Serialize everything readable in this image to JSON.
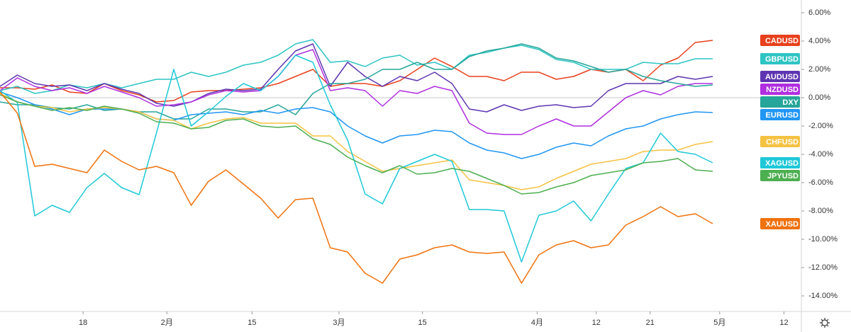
{
  "chart_data": {
    "type": "line",
    "xlim": [
      0,
      46.1
    ],
    "xticks": [
      {
        "value": 4.78,
        "label": "18"
      },
      {
        "value": 9.6,
        "label": "2月"
      },
      {
        "value": 14.5,
        "label": "15"
      },
      {
        "value": 19.5,
        "label": "3月"
      },
      {
        "value": 24.3,
        "label": "15"
      },
      {
        "value": 30.9,
        "label": "4月"
      },
      {
        "value": 34.3,
        "label": "12"
      },
      {
        "value": 37.4,
        "label": "21"
      },
      {
        "value": 41.4,
        "label": "5月"
      },
      {
        "value": 45.1,
        "label": "12"
      }
    ],
    "ylim": [
      -15.1,
      6.9
    ],
    "yticks": [
      {
        "value": 6,
        "label": "6.00%"
      },
      {
        "value": 4,
        "label": "4.00%"
      },
      {
        "value": 2,
        "label": "2.00%"
      },
      {
        "value": 0,
        "label": "0.00%"
      },
      {
        "value": -2,
        "label": "-2.00%"
      },
      {
        "value": -4,
        "label": "-4.00%"
      },
      {
        "value": -6,
        "label": "-6.00%"
      },
      {
        "value": -8,
        "label": "-8.00%"
      },
      {
        "value": -10,
        "label": "-10.00%"
      },
      {
        "value": -12,
        "label": "-12.00%"
      },
      {
        "value": -14,
        "label": "-14.00%"
      }
    ],
    "series": [
      {
        "name": "CADUSD",
        "color": "#e8401c",
        "values": [
          0.7,
          0.7,
          0.6,
          0.9,
          0.4,
          0.3,
          1.0,
          0.5,
          0.2,
          -0.3,
          -0.2,
          0.4,
          0.5,
          0.5,
          0.6,
          0.7,
          1.0,
          1.5,
          2.0,
          0.8,
          1.0,
          1.0,
          0.8,
          1.2,
          2.0,
          2.8,
          2.2,
          1.5,
          1.5,
          1.2,
          1.8,
          1.8,
          1.3,
          1.5,
          2.0,
          1.8,
          2.0,
          1.2,
          2.3,
          2.8,
          3.9,
          4.05
        ]
      },
      {
        "name": "GBPUSD",
        "color": "#2ec4c4",
        "values": [
          0.5,
          0.8,
          0.3,
          0.5,
          0.9,
          0.7,
          1.0,
          0.7,
          1.0,
          1.3,
          1.3,
          1.8,
          1.5,
          1.8,
          2.3,
          2.5,
          3.0,
          3.8,
          4.1,
          2.5,
          2.6,
          2.2,
          2.8,
          3.0,
          2.3,
          2.5,
          2.0,
          3.0,
          3.2,
          3.5,
          3.7,
          3.4,
          2.7,
          2.5,
          2.0,
          2.0,
          2.0,
          2.5,
          2.4,
          2.4,
          2.75,
          2.75
        ]
      },
      {
        "name": "AUDUSD",
        "color": "#5e35b1",
        "values": [
          0.8,
          1.6,
          1.0,
          0.8,
          0.9,
          0.5,
          1.0,
          0.6,
          0.3,
          -0.4,
          -0.6,
          -0.3,
          0.3,
          0.6,
          0.5,
          0.6,
          2.0,
          3.3,
          3.8,
          0.8,
          2.5,
          1.5,
          0.8,
          1.5,
          1.2,
          1.8,
          1.0,
          -0.8,
          -1.0,
          -0.5,
          -0.9,
          -0.6,
          -0.5,
          -0.7,
          -0.6,
          0.5,
          1.0,
          1.0,
          1.0,
          1.5,
          1.3,
          1.5
        ]
      },
      {
        "name": "NZDUSD",
        "color": "#b02ee0",
        "values": [
          0.5,
          1.4,
          0.8,
          0.5,
          0.7,
          0.3,
          0.8,
          0.4,
          0.0,
          -0.6,
          -0.5,
          -0.3,
          0.2,
          0.5,
          0.4,
          0.5,
          1.5,
          3.0,
          3.4,
          0.5,
          0.7,
          0.5,
          -0.6,
          0.5,
          0.3,
          0.8,
          0.5,
          -1.8,
          -2.5,
          -2.6,
          -2.6,
          -2.0,
          -1.5,
          -2.0,
          -2.0,
          -1.0,
          0.0,
          0.5,
          0.2,
          0.8,
          1.0,
          1.0
        ]
      },
      {
        "name": "DXY",
        "color": "#26a69a",
        "values": [
          -0.3,
          -0.5,
          -0.5,
          -0.7,
          -0.8,
          -0.5,
          -0.9,
          -0.8,
          -1.0,
          -1.0,
          -1.5,
          -1.5,
          -0.8,
          -0.8,
          -1.0,
          -1.0,
          -0.5,
          -1.2,
          0.3,
          1.0,
          1.0,
          1.3,
          2.0,
          2.0,
          2.5,
          2.0,
          2.0,
          2.9,
          3.3,
          3.5,
          3.8,
          3.5,
          2.8,
          2.6,
          2.2,
          1.8,
          2.0,
          1.5,
          1.2,
          1.0,
          0.8,
          0.9
        ]
      },
      {
        "name": "EURUSD",
        "color": "#2196f3",
        "values": [
          0.4,
          0.0,
          -0.5,
          -0.8,
          -1.2,
          -0.8,
          -0.8,
          -0.8,
          -1.0,
          -1.5,
          -1.6,
          -1.2,
          -1.1,
          -1.0,
          -1.2,
          -0.9,
          -1.1,
          -0.8,
          -0.7,
          -1.0,
          -2.0,
          -2.7,
          -3.2,
          -2.7,
          -2.6,
          -2.3,
          -2.4,
          -3.2,
          -3.7,
          -3.9,
          -4.3,
          -4.0,
          -3.5,
          -3.2,
          -3.4,
          -2.7,
          -2.2,
          -2.0,
          -1.5,
          -1.2,
          -1.0,
          -1.05
        ]
      },
      {
        "name": "CHFUSD",
        "color": "#f5c242",
        "values": [
          0.3,
          -0.3,
          -0.6,
          -0.7,
          -1.0,
          -0.8,
          -0.7,
          -0.8,
          -1.0,
          -1.5,
          -1.6,
          -2.2,
          -1.8,
          -1.5,
          -1.4,
          -1.8,
          -1.8,
          -1.8,
          -2.7,
          -2.7,
          -3.8,
          -4.5,
          -5.2,
          -5.0,
          -4.8,
          -4.6,
          -4.4,
          -5.8,
          -6.0,
          -6.2,
          -6.5,
          -6.3,
          -5.7,
          -5.2,
          -4.7,
          -4.5,
          -4.3,
          -3.8,
          -3.7,
          -3.7,
          -3.3,
          -3.1
        ]
      },
      {
        "name": "XAGUSD",
        "color": "#1ec8d8",
        "values": [
          0.5,
          -0.35,
          -8.35,
          -7.6,
          -8.1,
          -6.35,
          -5.35,
          -6.35,
          -6.85,
          -2.5,
          2.0,
          -2.0,
          -1.0,
          0.1,
          1.0,
          0.5,
          1.5,
          3.0,
          2.5,
          -0.5,
          -3.0,
          -6.8,
          -7.5,
          -5.0,
          -4.5,
          -4.0,
          -4.5,
          -7.9,
          -7.9,
          -8.0,
          -11.6,
          -8.3,
          -8.0,
          -7.3,
          -8.7,
          -6.8,
          -5.0,
          -4.6,
          -2.5,
          -3.8,
          -4.0,
          -4.6
        ]
      },
      {
        "name": "JPYUSD",
        "color": "#4caf50",
        "values": [
          0.2,
          -0.3,
          -0.6,
          -0.9,
          -0.7,
          -0.9,
          -0.6,
          -0.8,
          -1.1,
          -1.7,
          -1.8,
          -2.2,
          -2.1,
          -1.6,
          -1.5,
          -2.0,
          -2.1,
          -2.0,
          -2.9,
          -3.3,
          -4.2,
          -4.8,
          -5.3,
          -4.8,
          -5.4,
          -5.3,
          -5.0,
          -5.2,
          -5.7,
          -6.2,
          -6.8,
          -6.7,
          -6.3,
          -6.0,
          -5.5,
          -5.3,
          -5.1,
          -4.6,
          -4.5,
          -4.3,
          -5.1,
          -5.2
        ]
      },
      {
        "name": "XAUUSD",
        "color": "#f0720f",
        "values": [
          0.4,
          -1.1,
          -4.85,
          -4.7,
          -5.0,
          -5.3,
          -3.7,
          -4.5,
          -5.1,
          -4.85,
          -5.3,
          -7.6,
          -5.9,
          -5.1,
          -6.1,
          -7.1,
          -8.5,
          -7.2,
          -7.1,
          -10.6,
          -10.9,
          -12.4,
          -13.1,
          -11.4,
          -11.1,
          -10.6,
          -10.4,
          -10.9,
          -11.0,
          -10.9,
          -13.1,
          -11.1,
          -10.4,
          -10.1,
          -10.6,
          -10.4,
          -9.0,
          -8.4,
          -7.7,
          -8.4,
          -8.2,
          -8.9
        ]
      }
    ]
  }
}
